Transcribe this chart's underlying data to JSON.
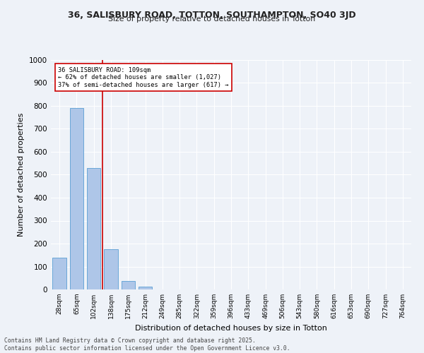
{
  "title_line1": "36, SALISBURY ROAD, TOTTON, SOUTHAMPTON, SO40 3JD",
  "title_line2": "Size of property relative to detached houses in Totton",
  "xlabel": "Distribution of detached houses by size in Totton",
  "ylabel": "Number of detached properties",
  "categories": [
    "28sqm",
    "65sqm",
    "102sqm",
    "138sqm",
    "175sqm",
    "212sqm",
    "249sqm",
    "285sqm",
    "322sqm",
    "359sqm",
    "396sqm",
    "433sqm",
    "469sqm",
    "506sqm",
    "543sqm",
    "580sqm",
    "616sqm",
    "653sqm",
    "690sqm",
    "727sqm",
    "764sqm"
  ],
  "values": [
    137,
    790,
    530,
    175,
    38,
    13,
    0,
    0,
    0,
    0,
    0,
    0,
    0,
    0,
    0,
    0,
    0,
    0,
    0,
    0,
    0
  ],
  "bar_color": "#aec6e8",
  "bar_edge_color": "#5a9fd4",
  "vline_x": 2.5,
  "vline_color": "#cc0000",
  "annotation_line1": "36 SALISBURY ROAD: 109sqm",
  "annotation_line2": "← 62% of detached houses are smaller (1,027)",
  "annotation_line3": "37% of semi-detached houses are larger (617) →",
  "annotation_box_color": "#ffffff",
  "annotation_box_edge_color": "#cc0000",
  "ylim": [
    0,
    1000
  ],
  "yticks": [
    0,
    100,
    200,
    300,
    400,
    500,
    600,
    700,
    800,
    900,
    1000
  ],
  "background_color": "#eef2f8",
  "footer_line1": "Contains HM Land Registry data © Crown copyright and database right 2025.",
  "footer_line2": "Contains public sector information licensed under the Open Government Licence v3.0."
}
